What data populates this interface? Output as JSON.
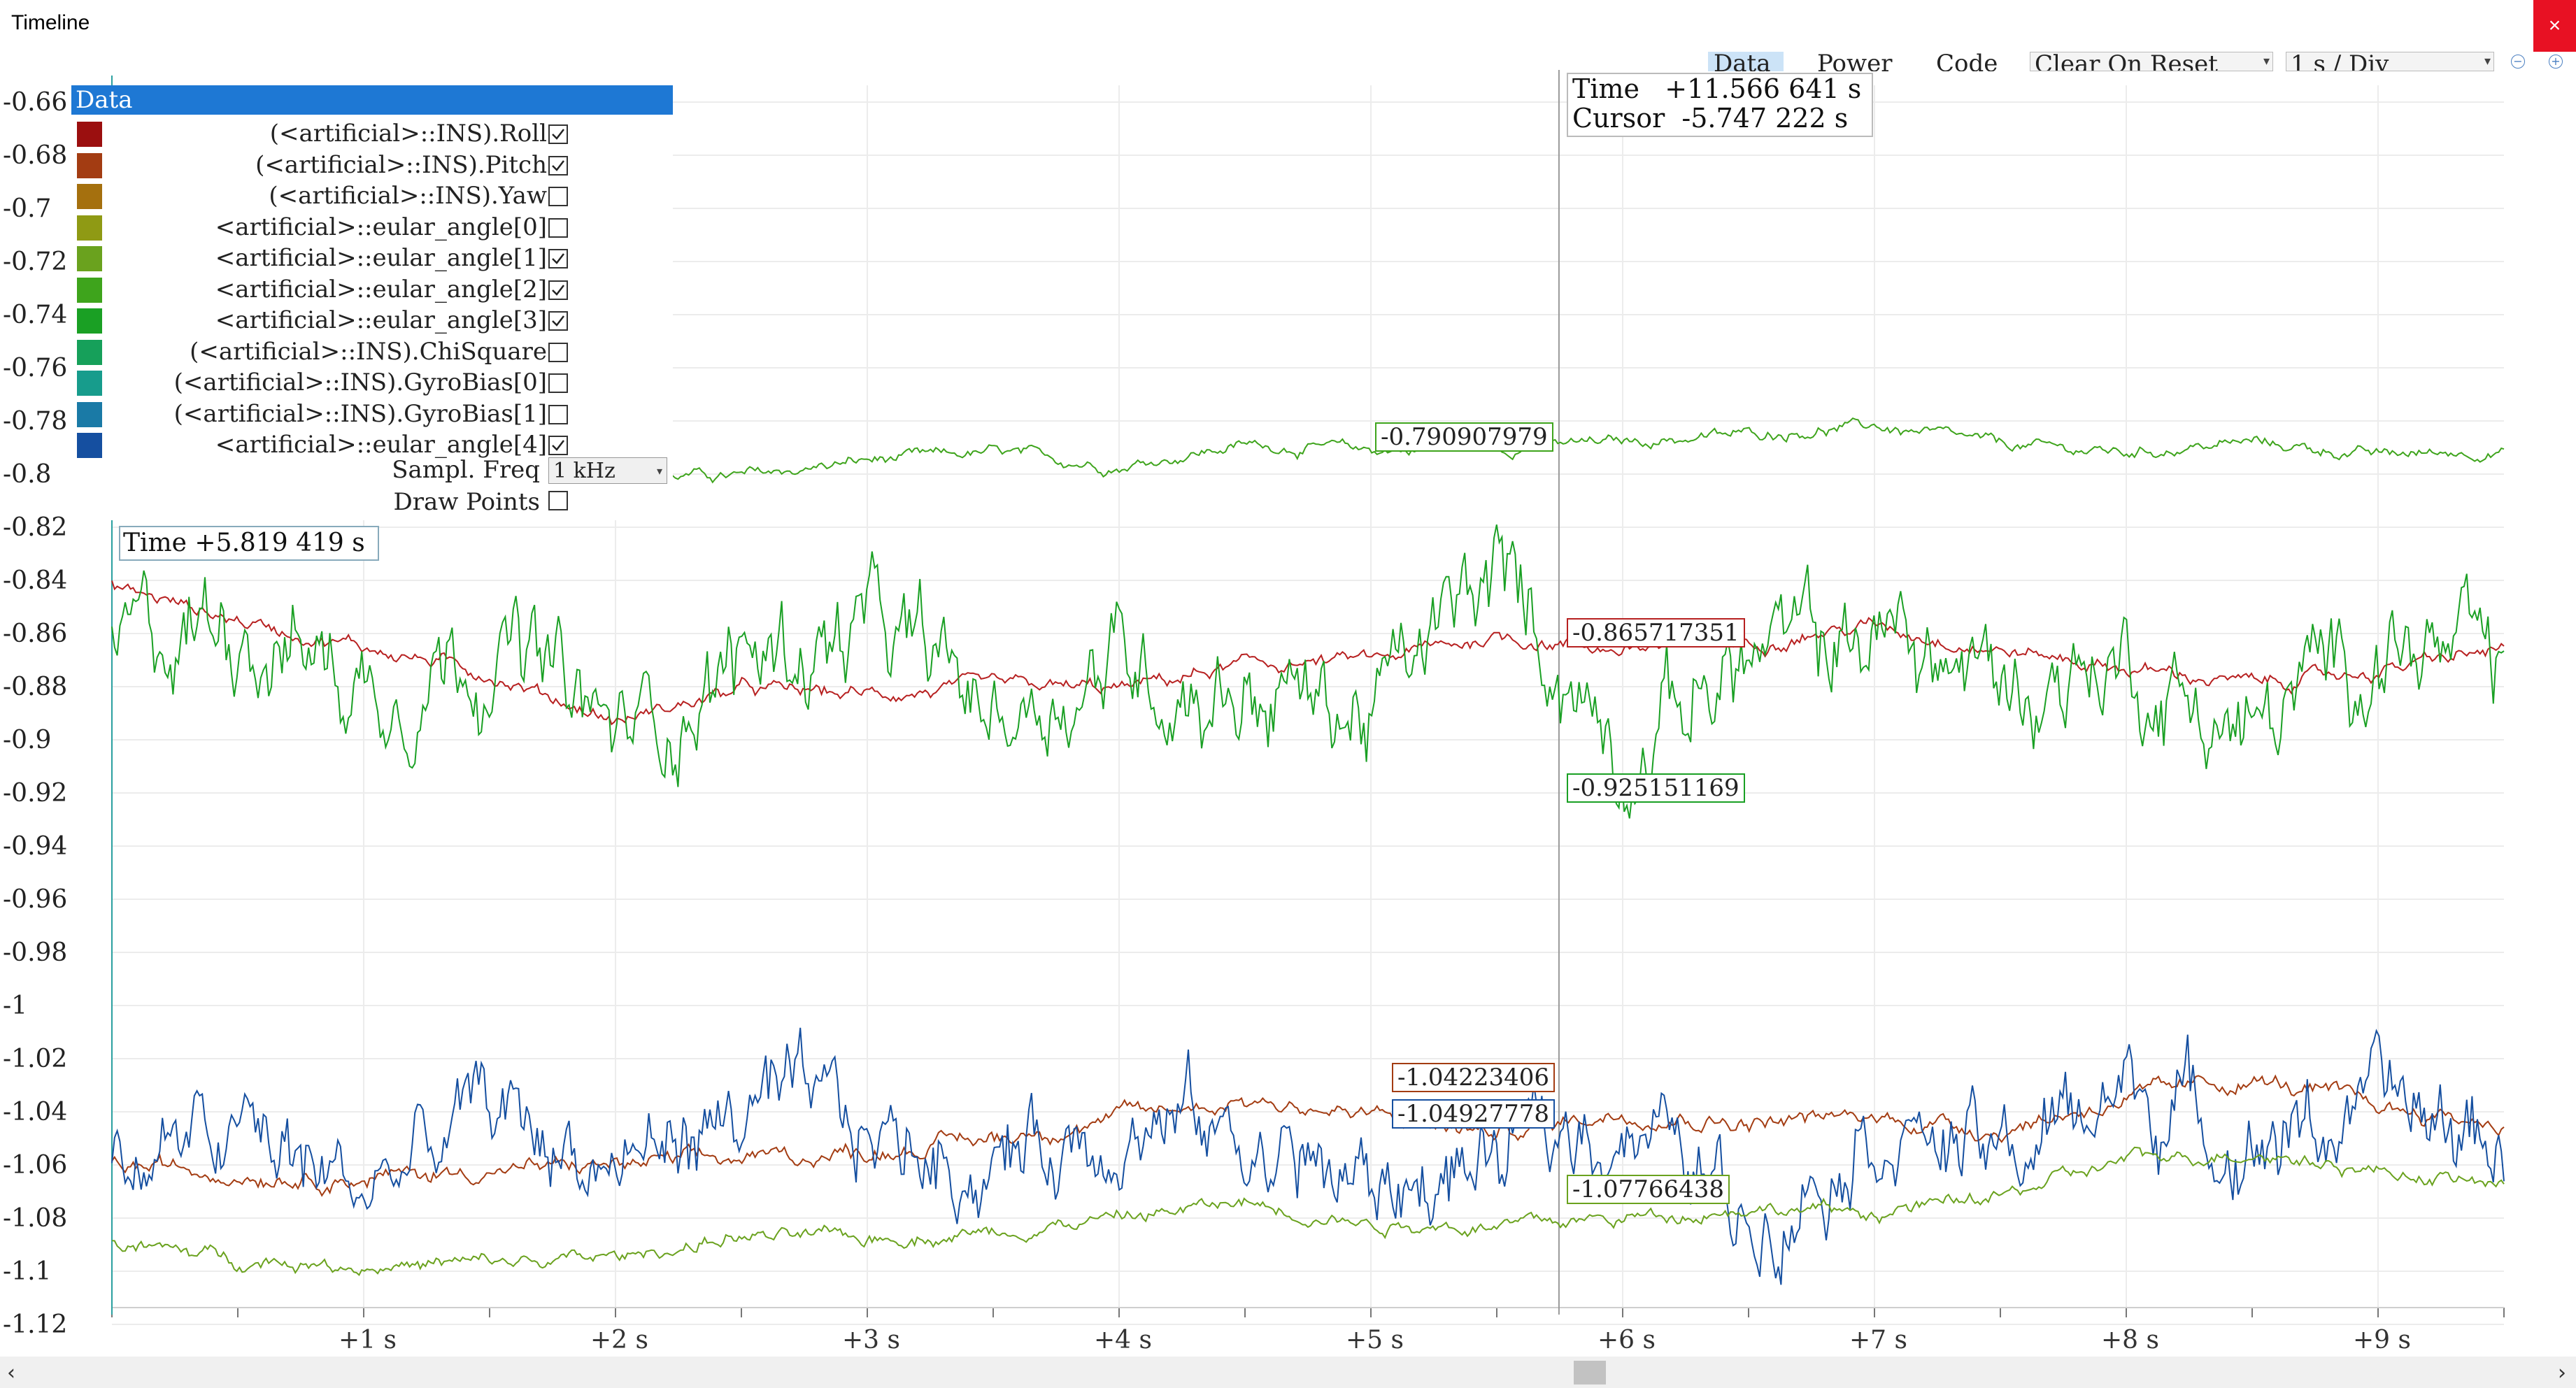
{
  "window": {
    "title": "Timeline",
    "close_label": "×"
  },
  "toolbar": {
    "tabs": [
      "Data",
      "Power",
      "Code"
    ],
    "active_tab": "Data",
    "reset_mode": "Clear On Reset",
    "time_div": "1 s / Div",
    "zoom_out_label": "−",
    "zoom_in_label": "+"
  },
  "legend": {
    "header": "Data",
    "items": [
      {
        "label": "(<artificial>::INS).Roll",
        "color": "#9b0f0f",
        "checked": true
      },
      {
        "label": "(<artificial>::INS).Pitch",
        "color": "#a33c12",
        "checked": true
      },
      {
        "label": "(<artificial>::INS).Yaw",
        "color": "#a5700e",
        "checked": false
      },
      {
        "label": "<artificial>::eular_angle[0]",
        "color": "#8f9a14",
        "checked": false
      },
      {
        "label": "<artificial>::eular_angle[1]",
        "color": "#6aa21e",
        "checked": true
      },
      {
        "label": "<artificial>::eular_angle[2]",
        "color": "#3ea41c",
        "checked": true
      },
      {
        "label": "<artificial>::eular_angle[3]",
        "color": "#1aa024",
        "checked": true
      },
      {
        "label": "(<artificial>::INS).ChiSquare",
        "color": "#16a05a",
        "checked": false
      },
      {
        "label": "(<artificial>::INS).GyroBias[0]",
        "color": "#179c8c",
        "checked": false
      },
      {
        "label": "(<artificial>::INS).GyroBias[1]",
        "color": "#1a7aa6",
        "checked": false
      },
      {
        "label": "<artificial>::eular_angle[4]",
        "color": "#154fa0",
        "checked": true
      }
    ],
    "sampl_freq_label": "Sampl. Freq",
    "sampl_freq_value": "1 kHz",
    "draw_points_label": "Draw Points",
    "draw_points_checked": false
  },
  "readout": {
    "time": "Time   +11.566 641 s",
    "cursor": "Cursor  -5.747 222 s"
  },
  "start_marker": "Time +5.819 419 s",
  "value_labels": [
    {
      "text": "-0.790907979",
      "color": "#3ea41c"
    },
    {
      "text": "-0.865717351",
      "color": "#b72020"
    },
    {
      "text": "-0.925151169",
      "color": "#1aa024"
    },
    {
      "text": "-1.04223406",
      "color": "#a33c12"
    },
    {
      "text": "-1.04927778",
      "color": "#154fa0"
    },
    {
      "text": "-1.07766438",
      "color": "#6aa21e"
    }
  ],
  "chart_data": {
    "type": "line",
    "ylim": [
      -1.13,
      -0.66
    ],
    "xlim": [
      0,
      9.5
    ],
    "grid": true,
    "y_ticks": [
      "-0.66",
      "-0.68",
      "-0.7",
      "-0.72",
      "-0.74",
      "-0.76",
      "-0.78",
      "-0.8",
      "-0.82",
      "-0.84",
      "-0.86",
      "-0.88",
      "-0.9",
      "-0.92",
      "-0.94",
      "-0.96",
      "-0.98",
      "-1",
      "-1.02",
      "-1.04",
      "-1.06",
      "-1.08",
      "-1.1",
      "-1.12"
    ],
    "x_ticks": [
      "+1 s",
      "+2 s",
      "+3 s",
      "+4 s",
      "+5 s",
      "+6 s",
      "+7 s",
      "+8 s",
      "+9 s"
    ],
    "cursor_x": 5.747,
    "series": [
      {
        "name": "<artificial>::eular_angle[2]",
        "color": "#3ea41c",
        "x": [
          0,
          1,
          2,
          2.5,
          3,
          3.5,
          4,
          4.5,
          5,
          5.5,
          6,
          6.5,
          7,
          7.5,
          8,
          8.5,
          9,
          9.5
        ],
        "y": [
          -0.795,
          -0.8,
          -0.8,
          -0.801,
          -0.795,
          -0.792,
          -0.797,
          -0.789,
          -0.791,
          -0.79,
          -0.788,
          -0.785,
          -0.782,
          -0.789,
          -0.792,
          -0.788,
          -0.793,
          -0.791
        ]
      },
      {
        "name": "(<artificial>::INS).Roll",
        "color": "#b72020",
        "x": [
          0,
          0.5,
          1,
          1.5,
          2,
          2.5,
          3,
          3.5,
          4,
          4.5,
          5,
          5.5,
          6,
          6.5,
          7,
          7.5,
          8,
          8.5,
          9,
          9.5
        ],
        "y": [
          -0.842,
          -0.855,
          -0.865,
          -0.875,
          -0.893,
          -0.881,
          -0.883,
          -0.88,
          -0.881,
          -0.872,
          -0.87,
          -0.861,
          -0.866,
          -0.863,
          -0.857,
          -0.866,
          -0.873,
          -0.879,
          -0.874,
          -0.866
        ]
      },
      {
        "name": "<artificial>::eular_angle[3]",
        "color": "#1aa024",
        "x": [
          0,
          0.5,
          1,
          1.5,
          2,
          2.5,
          3,
          3.5,
          4,
          4.5,
          5,
          5.5,
          6,
          6.5,
          7,
          7.5,
          8,
          8.5,
          9,
          9.5
        ],
        "y": [
          -0.87,
          -0.85,
          -0.88,
          -0.86,
          -0.9,
          -0.87,
          -0.86,
          -0.89,
          -0.87,
          -0.88,
          -0.89,
          -0.84,
          -0.9,
          -0.87,
          -0.86,
          -0.88,
          -0.87,
          -0.9,
          -0.86,
          -0.88
        ]
      },
      {
        "name": "(<artificial>::INS).Pitch",
        "color": "#a33c12",
        "x": [
          0,
          0.5,
          1,
          1.5,
          2,
          2.5,
          3,
          3.5,
          4,
          4.5,
          5,
          5.5,
          6,
          6.5,
          7,
          7.5,
          8,
          8.5,
          9,
          9.5
        ],
        "y": [
          -1.06,
          -1.063,
          -1.065,
          -1.062,
          -1.06,
          -1.058,
          -1.055,
          -1.05,
          -1.042,
          -1.035,
          -1.042,
          -1.048,
          -1.04,
          -1.044,
          -1.042,
          -1.047,
          -1.035,
          -1.028,
          -1.038,
          -1.045
        ]
      },
      {
        "name": "<artificial>::eular_angle[4]",
        "color": "#154fa0",
        "x": [
          0,
          0.5,
          1,
          1.5,
          2,
          2.5,
          3,
          3.5,
          4,
          4.5,
          5,
          5.5,
          6,
          6.5,
          7,
          7.5,
          8,
          8.5,
          9,
          9.5
        ],
        "y": [
          -1.06,
          -1.05,
          -1.07,
          -1.04,
          -1.06,
          -1.04,
          -1.05,
          -1.06,
          -1.04,
          -1.05,
          -1.07,
          -1.06,
          -1.04,
          -1.08,
          -1.04,
          -1.06,
          -1.03,
          -1.05,
          -1.04,
          -1.05
        ]
      },
      {
        "name": "<artificial>::eular_angle[1]",
        "color": "#6aa21e",
        "x": [
          0,
          0.5,
          1,
          1.5,
          2,
          2.5,
          3,
          3.5,
          4,
          4.5,
          5,
          5.5,
          6,
          6.5,
          7,
          7.5,
          8,
          8.5,
          9,
          9.5
        ],
        "y": [
          -1.09,
          -1.095,
          -1.098,
          -1.097,
          -1.095,
          -1.087,
          -1.088,
          -1.085,
          -1.08,
          -1.074,
          -1.082,
          -1.083,
          -1.08,
          -1.076,
          -1.078,
          -1.072,
          -1.058,
          -1.055,
          -1.062,
          -1.068
        ]
      }
    ]
  }
}
